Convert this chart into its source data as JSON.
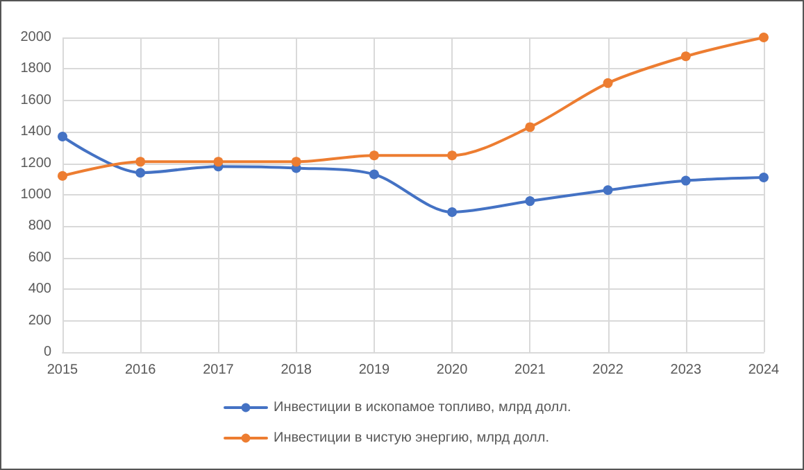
{
  "chart_data": {
    "type": "line",
    "categories": [
      "2015",
      "2016",
      "2017",
      "2018",
      "2019",
      "2020",
      "2021",
      "2022",
      "2023",
      "2024"
    ],
    "series": [
      {
        "name": "Инвестиции в ископамое топливо, млрд долл.",
        "color": "#4472c4",
        "values": [
          1370,
          1140,
          1180,
          1170,
          1130,
          890,
          960,
          1030,
          1090,
          1110
        ]
      },
      {
        "name": "Инвестиции в чистую энергию, млрд долл.",
        "color": "#ed7d31",
        "values": [
          1120,
          1210,
          1210,
          1210,
          1250,
          1250,
          1430,
          1710,
          1880,
          2000
        ]
      }
    ],
    "ylim": [
      0,
      2000
    ],
    "yticks": [
      0,
      200,
      400,
      600,
      800,
      1000,
      1200,
      1400,
      1600,
      1800,
      2000
    ],
    "grid": true,
    "legend": "bottom",
    "marker": "circle",
    "line_style": "solid"
  }
}
